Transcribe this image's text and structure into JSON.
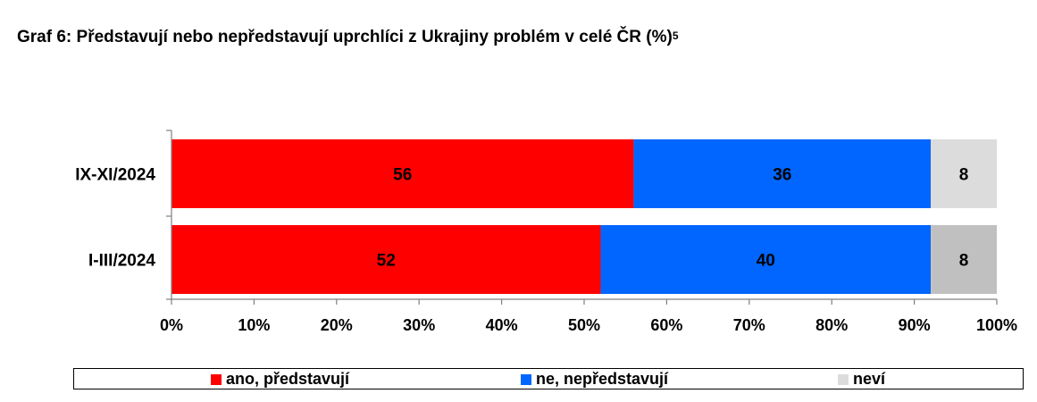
{
  "title": "Graf 6: Představují nebo nepředstavují uprchlíci z Ukrajiny problém v celé ČR (%)",
  "title_footnote": "5",
  "chart_data": {
    "type": "bar",
    "orientation": "horizontal",
    "stacked": true,
    "categories": [
      "IX-XI/2024",
      "I-III/2024"
    ],
    "series": [
      {
        "name": "ano, představují",
        "values": [
          56,
          52
        ],
        "color": "#ff0000"
      },
      {
        "name": "ne, nepředstavují",
        "values": [
          36,
          40
        ],
        "color": "#0066ff"
      },
      {
        "name": "neví",
        "values": [
          8,
          8
        ],
        "colors": [
          "#dcdcdc",
          "#c0c0c0"
        ]
      }
    ],
    "xlim": [
      0,
      100
    ],
    "x_ticks": [
      "0%",
      "10%",
      "20%",
      "30%",
      "40%",
      "50%",
      "60%",
      "70%",
      "80%",
      "90%",
      "100%"
    ],
    "legend_position": "bottom",
    "grid": false,
    "data_labels": true
  }
}
